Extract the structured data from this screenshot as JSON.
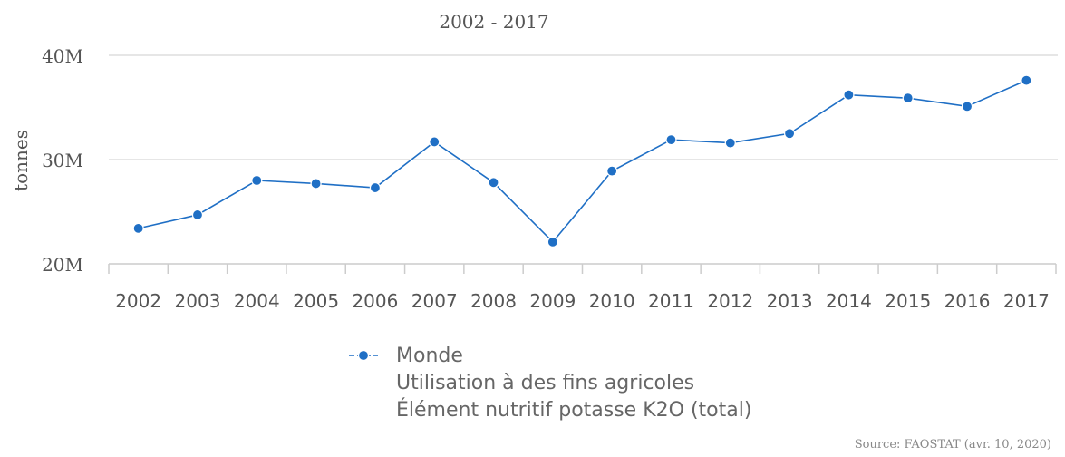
{
  "chart_data": {
    "type": "line",
    "title": "2002 - 2017",
    "ylabel": "tonnes",
    "xlabel": "",
    "categories": [
      "2002",
      "2003",
      "2004",
      "2005",
      "2006",
      "2007",
      "2008",
      "2009",
      "2010",
      "2011",
      "2012",
      "2013",
      "2014",
      "2015",
      "2016",
      "2017"
    ],
    "ylim": [
      20000000,
      40000000
    ],
    "yticks": [
      {
        "value": 20000000,
        "label": "20M"
      },
      {
        "value": 30000000,
        "label": "30M"
      },
      {
        "value": 40000000,
        "label": "40M"
      }
    ],
    "grid": true,
    "legend_position": "bottom-center",
    "series": [
      {
        "name": "Monde\nUtilisation à des fins agricoles\nÉlément nutritif potasse K2O (total)",
        "color": "#1f6fc5",
        "values": [
          23400000,
          24700000,
          28000000,
          27700000,
          27300000,
          31700000,
          27800000,
          22100000,
          28900000,
          31900000,
          31600000,
          32500000,
          36200000,
          35900000,
          35100000,
          37600000
        ]
      }
    ],
    "legend_lines": [
      "Monde",
      "Utilisation à des fins agricoles",
      "Élément nutritif potasse K2O (total)"
    ],
    "source": "Source: FAOSTAT (avr. 10, 2020)"
  }
}
